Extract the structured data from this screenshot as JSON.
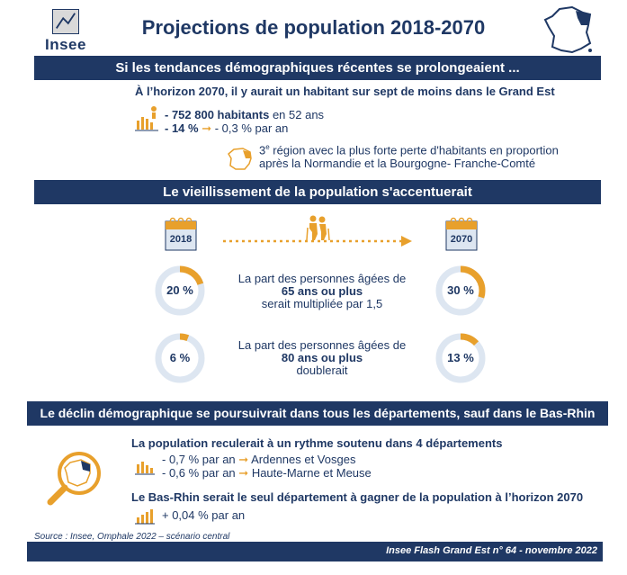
{
  "header": {
    "logo_text": "Insee",
    "title": "Projections de population 2018-2070"
  },
  "section1": {
    "band": "Si les tendances démographiques récentes se prolongeaient ...",
    "headline": "À l’horizon 2070,  il y aurait un habitant sur sept de moins dans le Grand Est",
    "line1_bold": "- 752 800 habitants",
    "line1_rest": " en 52 ans",
    "line2_bold": "- 14 %",
    "line2_rest": " - 0,3 % par an",
    "rank_sup": "e",
    "rank_num": "3",
    "rank_line1": " région avec la plus forte perte d'habitants en proportion",
    "rank_line2": "après la Normandie et la Bourgogne- Franche-Comté"
  },
  "section2": {
    "band": "Le vieillissement de la population s'accentuerait",
    "year_start": "2018",
    "year_end": "2070",
    "row1": {
      "left_value": "20 %",
      "left_fraction": 0.2,
      "right_value": "30 %",
      "right_fraction": 0.3,
      "text1": "La part des personnes âgées de",
      "text2": "65 ans ou plus",
      "text3": "serait multipliée par 1,5"
    },
    "row2": {
      "left_value": "6 %",
      "left_fraction": 0.06,
      "right_value": "13 %",
      "right_fraction": 0.13,
      "text1": "La part des personnes âgées de",
      "text2": "80 ans ou plus",
      "text3": "doublerait"
    }
  },
  "section3": {
    "band": "Le déclin démographique se poursuivrait dans tous les départements, sauf dans le Bas-Rhin",
    "sub1": "La population reculerait à un rythme soutenu dans 4 départements",
    "rate1": "- 0,7 % par an",
    "depts1": "Ardennes et Vosges",
    "rate2": "- 0,6 % par an",
    "depts2": "Haute-Marne et Meuse",
    "sub2": "Le Bas-Rhin serait le seul département à gagner de la population à l’horizon 2070",
    "rate3": "+ 0,04 % par an"
  },
  "footer": {
    "source": "Source : Insee, Omphale 2022 – scénario central",
    "reference": "Insee Flash Grand Est n° 64 - novembre 2022"
  },
  "colors": {
    "navy": "#1f3864",
    "orange": "#e8a02c",
    "light_blue": "#dde6f1"
  }
}
